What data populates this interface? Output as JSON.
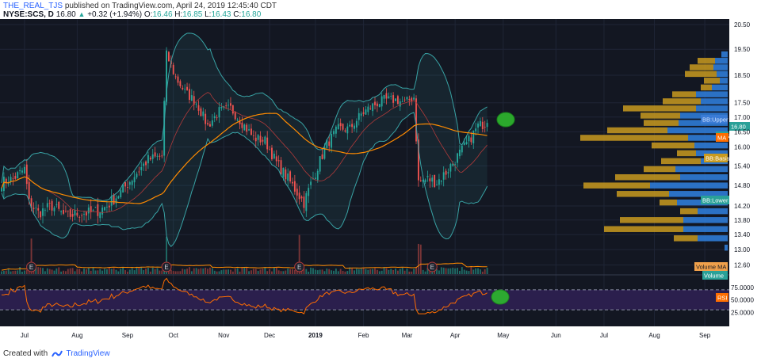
{
  "header": {
    "user": "THE_REAL_TJS",
    "published_text": "published on TradingView.com, April 24, 2019 12:45:40 CDT",
    "symbol": "NYSE:SCS, D",
    "last": "16.80",
    "change": "+0.32 (+1.94%)",
    "o_label": "O:",
    "o_value": "16.46",
    "h_label": "H:",
    "h_value": "16.85",
    "l_label": "L:",
    "l_value": "16.43",
    "c_label": "C:",
    "c_value": "16.80"
  },
  "footer": {
    "created_with": "Created with",
    "brand": "TradingView"
  },
  "colors": {
    "background": "#131722",
    "bull": "#26a69a",
    "bear": "#ef5350",
    "ma": "#ff8b00",
    "bb": "#38a2a4",
    "rsi": "#ff6d00",
    "rsi_band": "#2b1f4d",
    "vp_up": "#2f7bd6",
    "vp_down": "#c99a1f",
    "highlight": "#2eb82e"
  },
  "chart_data": {
    "type": "candlestick",
    "price_axis": {
      "ticks": [
        "20.50",
        "19.50",
        "18.50",
        "17.50",
        "17.00",
        "16.50",
        "16.00",
        "15.40",
        "14.80",
        "14.20",
        "13.80",
        "13.40",
        "13.00",
        "12.60"
      ],
      "range": [
        12.45,
        20.6
      ]
    },
    "x_axis": {
      "ticks": [
        {
          "label": "Jul",
          "idx": 10
        },
        {
          "label": "Aug",
          "idx": 33
        },
        {
          "label": "Sep",
          "idx": 55
        },
        {
          "label": "Oct",
          "idx": 75
        },
        {
          "label": "Nov",
          "idx": 97
        },
        {
          "label": "Dec",
          "idx": 117
        },
        {
          "label": "2019",
          "idx": 137
        },
        {
          "label": "Feb",
          "idx": 158
        },
        {
          "label": "Mar",
          "idx": 177
        },
        {
          "label": "Apr",
          "idx": 198
        },
        {
          "label": "May",
          "idx": 219
        },
        {
          "label": "Jun",
          "idx": 242
        },
        {
          "label": "Jul",
          "idx": 263
        },
        {
          "label": "Aug",
          "idx": 285
        },
        {
          "label": "Sep",
          "idx": 307
        }
      ],
      "bar_range": [
        0,
        317
      ]
    },
    "anchors": [
      [
        0,
        14.9
      ],
      [
        5,
        15.0
      ],
      [
        10,
        15.3
      ],
      [
        12,
        14.3
      ],
      [
        16,
        14.0
      ],
      [
        22,
        14.2
      ],
      [
        28,
        13.9
      ],
      [
        34,
        14.0
      ],
      [
        40,
        14.0
      ],
      [
        46,
        14.2
      ],
      [
        52,
        14.6
      ],
      [
        58,
        15.1
      ],
      [
        64,
        15.6
      ],
      [
        70,
        15.7
      ],
      [
        72,
        19.3
      ],
      [
        76,
        18.4
      ],
      [
        80,
        17.9
      ],
      [
        85,
        17.5
      ],
      [
        90,
        16.7
      ],
      [
        95,
        17.2
      ],
      [
        100,
        17.3
      ],
      [
        105,
        16.8
      ],
      [
        110,
        16.3
      ],
      [
        115,
        16.2
      ],
      [
        120,
        15.5
      ],
      [
        126,
        14.9
      ],
      [
        132,
        14.3
      ],
      [
        137,
        15.2
      ],
      [
        142,
        16.1
      ],
      [
        147,
        16.6
      ],
      [
        152,
        16.6
      ],
      [
        157,
        17.1
      ],
      [
        162,
        17.4
      ],
      [
        167,
        17.6
      ],
      [
        172,
        17.6
      ],
      [
        176,
        17.5
      ],
      [
        180,
        17.7
      ],
      [
        182,
        14.9
      ],
      [
        186,
        15.0
      ],
      [
        190,
        14.9
      ],
      [
        194,
        15.2
      ],
      [
        199,
        15.7
      ],
      [
        204,
        16.2
      ],
      [
        208,
        16.7
      ],
      [
        212,
        16.8
      ]
    ],
    "events": [
      {
        "label": "E",
        "idx": 13
      },
      {
        "label": "E",
        "idx": 72
      },
      {
        "label": "E",
        "idx": 130
      },
      {
        "label": "E",
        "idx": 188
      }
    ],
    "indicators": {
      "bb_labels": {
        "upper": "BB:Upper",
        "basis": "BB:Basis",
        "lower": "BB:Lower"
      },
      "ma_label": "MA",
      "last_price_label": "16.80",
      "scs_label": "SCS",
      "volume_ma_label": "Volume MA",
      "volume_label": "Volume",
      "rsi": {
        "label": "RSI",
        "ticks": [
          "75.0000",
          "50.0000",
          "25.0000"
        ],
        "upper": 70,
        "lower": 30
      }
    },
    "volume_profile": [
      {
        "price": 19.3,
        "up": 8,
        "down": 0
      },
      {
        "price": 19.05,
        "up": 16,
        "down": 22
      },
      {
        "price": 18.8,
        "up": 18,
        "down": 30
      },
      {
        "price": 18.55,
        "up": 14,
        "down": 40
      },
      {
        "price": 18.3,
        "up": 10,
        "down": 20
      },
      {
        "price": 18.05,
        "up": 20,
        "down": 14
      },
      {
        "price": 17.8,
        "up": 40,
        "down": 30
      },
      {
        "price": 17.55,
        "up": 34,
        "down": 48
      },
      {
        "price": 17.3,
        "up": 40,
        "down": 92
      },
      {
        "price": 17.05,
        "up": 60,
        "down": 50
      },
      {
        "price": 16.8,
        "up": 62,
        "down": 44
      },
      {
        "price": 16.55,
        "up": 76,
        "down": 76
      },
      {
        "price": 16.3,
        "up": 50,
        "down": 136
      },
      {
        "price": 16.05,
        "up": 42,
        "down": 54
      },
      {
        "price": 15.8,
        "up": 40,
        "down": 24
      },
      {
        "price": 15.55,
        "up": 34,
        "down": 50
      },
      {
        "price": 15.3,
        "up": 66,
        "down": 40
      },
      {
        "price": 15.05,
        "up": 60,
        "down": 82
      },
      {
        "price": 14.8,
        "up": 98,
        "down": 84
      },
      {
        "price": 14.55,
        "up": 74,
        "down": 66
      },
      {
        "price": 14.3,
        "up": 64,
        "down": 22
      },
      {
        "price": 14.05,
        "up": 38,
        "down": 22
      },
      {
        "price": 13.8,
        "up": 56,
        "down": 80
      },
      {
        "price": 13.55,
        "up": 56,
        "down": 100
      },
      {
        "price": 13.3,
        "up": 38,
        "down": 30
      },
      {
        "price": 13.05,
        "up": 4,
        "down": 0
      }
    ]
  }
}
